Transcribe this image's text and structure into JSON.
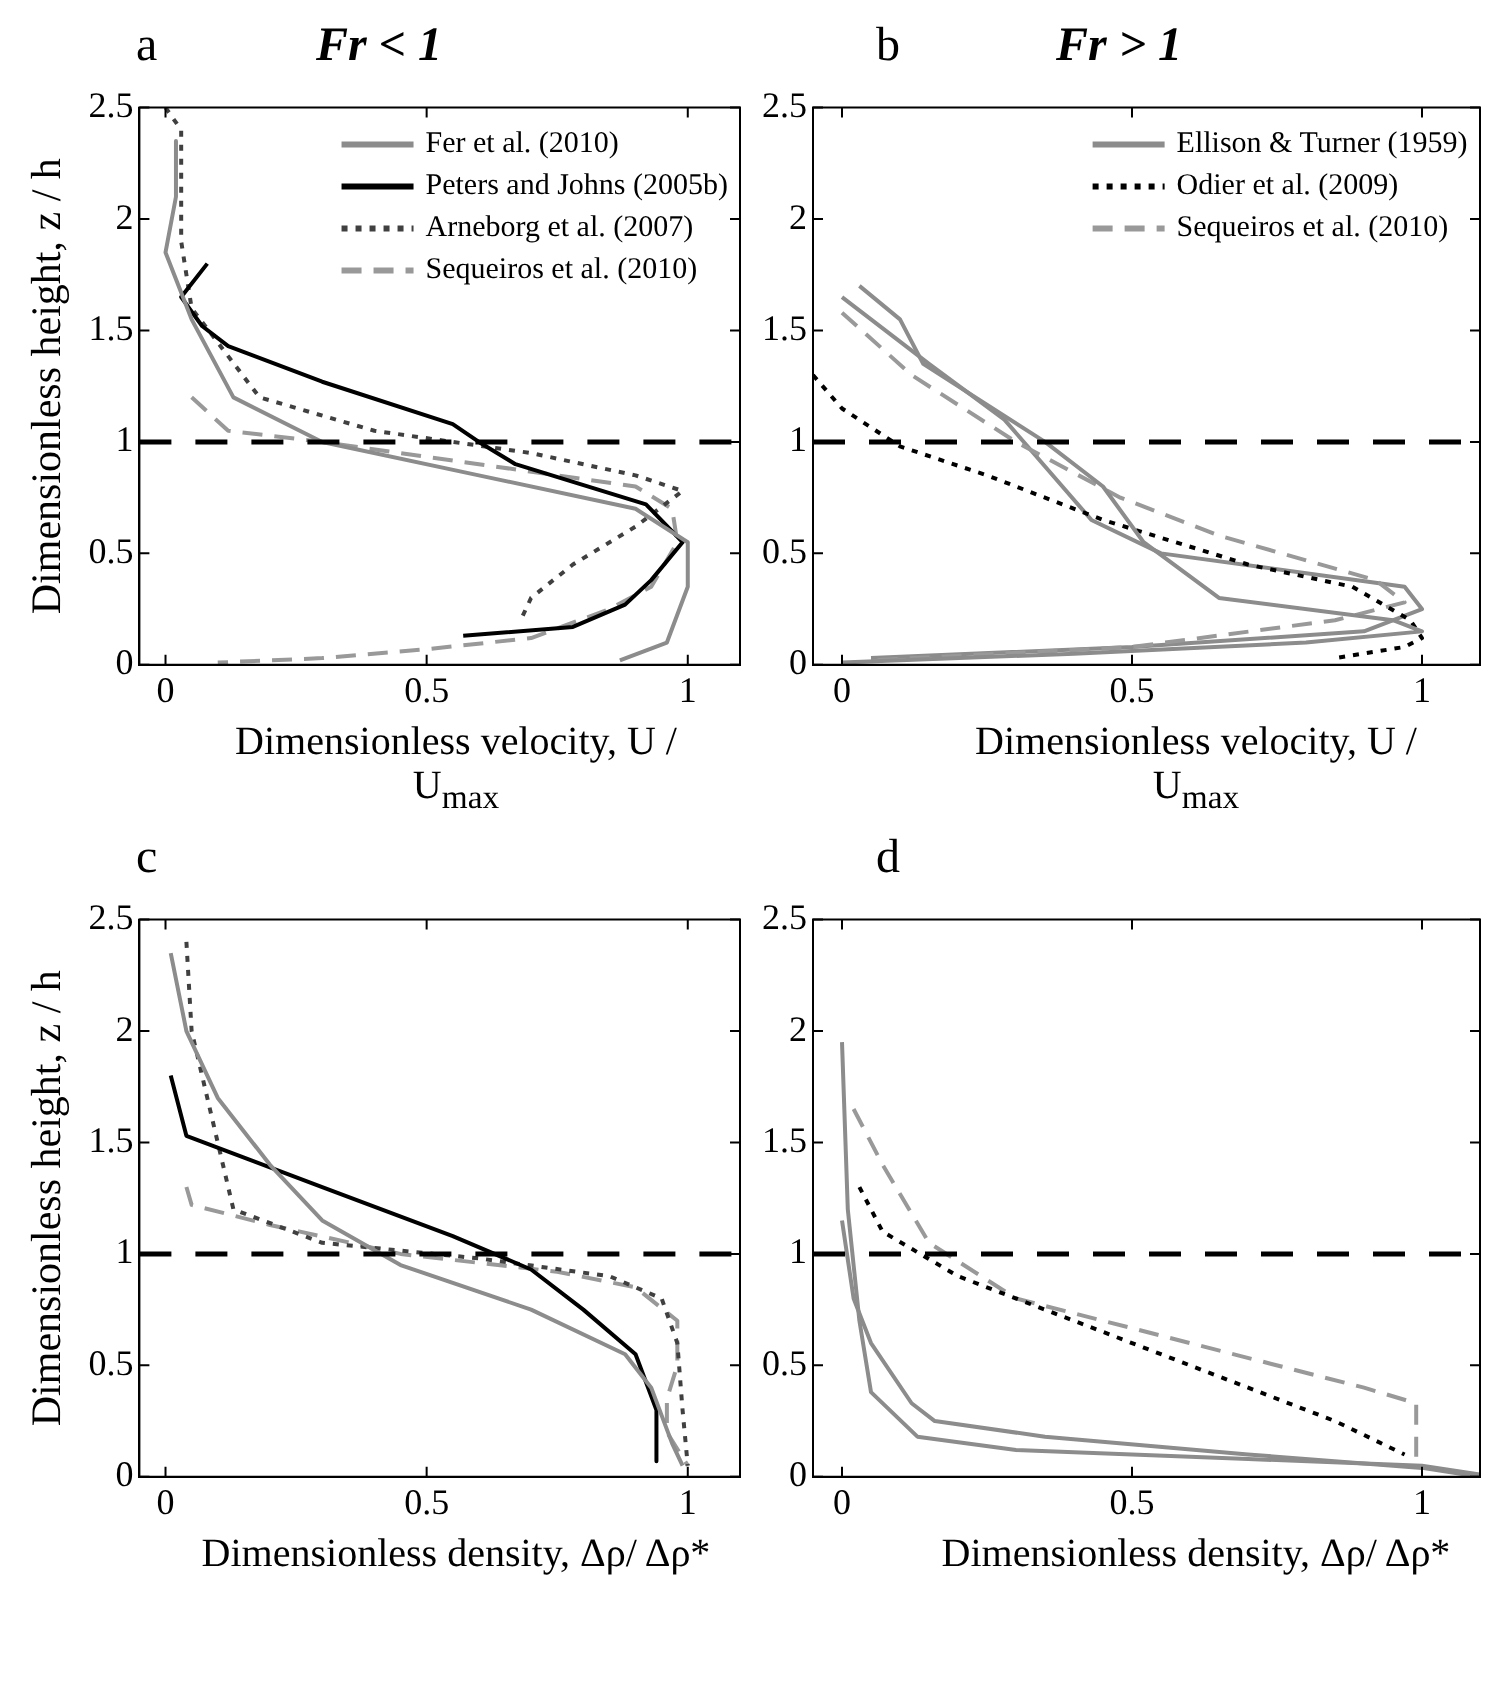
{
  "chart_data": [
    {
      "type": "line",
      "title": "Fr < 1",
      "annotations": [
        "a"
      ],
      "xlabel": "Dimensionless velocity, U / U$_{max}$",
      "ylabel": "Dimensionless height, z / h",
      "xlim": [
        -0.05,
        1.1
      ],
      "xticks": [
        0,
        0.5,
        1
      ],
      "ylim": [
        0,
        2.5
      ],
      "yticks": [
        0,
        0.5,
        1,
        1.5,
        2,
        2.5
      ],
      "grid": false,
      "legend": "top right",
      "marker": "none",
      "ref_lines": [
        {
          "axis": "y",
          "value": 1,
          "color": "#000000",
          "line_style": "dashed"
        }
      ],
      "series": [
        {
          "name": "Fer et al. (2010)",
          "color": "#8c8c8c",
          "line_style": "solid",
          "x": [
            0.02,
            0.02,
            0.0,
            0.05,
            0.13,
            0.3,
            0.6,
            0.9,
            1.0,
            1.0,
            0.96,
            0.87
          ],
          "values": [
            2.35,
            2.1,
            1.85,
            1.55,
            1.2,
            1.0,
            0.85,
            0.7,
            0.55,
            0.35,
            0.1,
            0.02
          ]
        },
        {
          "name": "Peters and Johns (2005b)",
          "color": "#000000",
          "line_style": "solid",
          "x": [
            0.08,
            0.03,
            0.07,
            0.12,
            0.3,
            0.55,
            0.6,
            0.67,
            0.92,
            0.99,
            0.93,
            0.88,
            0.78,
            0.57
          ],
          "values": [
            1.8,
            1.65,
            1.52,
            1.43,
            1.27,
            1.08,
            1.0,
            0.9,
            0.72,
            0.55,
            0.38,
            0.27,
            0.17,
            0.13
          ]
        },
        {
          "name": "Arneborg et al. (2007)",
          "color": "#404040",
          "line_style": "dotted",
          "x": [
            0.0,
            0.03,
            0.03,
            0.05,
            0.18,
            0.4,
            0.7,
            0.9,
            0.99,
            0.9,
            0.78,
            0.7,
            0.68
          ],
          "values": [
            2.5,
            2.4,
            1.9,
            1.6,
            1.2,
            1.05,
            0.95,
            0.85,
            0.78,
            0.62,
            0.45,
            0.3,
            0.2
          ]
        },
        {
          "name": "Sequeiros et al. (2010)",
          "color": "#999999",
          "line_style": "dashed",
          "x": [
            0.05,
            0.12,
            0.3,
            0.6,
            0.9,
            0.97,
            0.98,
            0.93,
            0.85,
            0.7,
            0.5,
            0.3,
            0.1
          ],
          "values": [
            1.2,
            1.05,
            1.0,
            0.9,
            0.8,
            0.7,
            0.55,
            0.35,
            0.25,
            0.12,
            0.07,
            0.03,
            0.01
          ]
        }
      ]
    },
    {
      "type": "line",
      "title": "Fr > 1",
      "annotations": [
        "b"
      ],
      "xlabel": "Dimensionless velocity, U / U$_{max}$",
      "xlim": [
        -0.05,
        1.1
      ],
      "xticks": [
        0,
        0.5,
        1
      ],
      "ylim": [
        0,
        2.5
      ],
      "yticks": [
        0,
        0.5,
        1,
        1.5,
        2,
        2.5
      ],
      "grid": false,
      "legend": "top right",
      "marker": "none",
      "ref_lines": [
        {
          "axis": "y",
          "value": 1,
          "color": "#000000",
          "line_style": "dashed"
        }
      ],
      "series": [
        {
          "name": "Ellison & Turner (1959)",
          "color": "#8c8c8c",
          "line_style": "solid",
          "x": [
            0.03,
            0.1,
            0.14,
            0.35,
            0.45,
            0.52,
            0.65,
            0.95,
            1.0,
            0.8,
            0.4,
            0.0
          ],
          "values": [
            1.7,
            1.55,
            1.35,
            1.0,
            0.8,
            0.55,
            0.3,
            0.2,
            0.15,
            0.1,
            0.05,
            0.01
          ]
        },
        {
          "name": "Odier et al. (2009)",
          "color": "#000000",
          "line_style": "dotted",
          "x": [
            -0.05,
            0.0,
            0.1,
            0.25,
            0.45,
            0.7,
            0.88,
            0.98,
            1.0,
            0.97,
            0.85
          ],
          "values": [
            1.3,
            1.15,
            0.98,
            0.85,
            0.65,
            0.45,
            0.35,
            0.2,
            0.12,
            0.08,
            0.03
          ]
        },
        {
          "name": "Sequeiros et al. (2010)",
          "color": "#999999",
          "line_style": "dashed",
          "x": [
            0.0,
            0.12,
            0.3,
            0.48,
            0.65,
            0.92,
            0.97,
            0.85,
            0.5,
            0.05
          ],
          "values": [
            1.58,
            1.3,
            1.0,
            0.75,
            0.58,
            0.38,
            0.28,
            0.2,
            0.08,
            0.02
          ]
        },
        {
          "color": "#8c8c8c",
          "line_style": "solid",
          "x": [
            0.0,
            0.15,
            0.28,
            0.43,
            0.55,
            0.97,
            1.0,
            0.9,
            0.5,
            0.05
          ],
          "values": [
            1.65,
            1.35,
            1.1,
            0.65,
            0.5,
            0.35,
            0.25,
            0.15,
            0.08,
            0.03
          ]
        }
      ]
    },
    {
      "type": "line",
      "annotations": [
        "c"
      ],
      "xlabel": "Dimensionless density, Δρ/ Δρ*",
      "ylabel": "Dimensionless height, z / h",
      "xlim": [
        -0.05,
        1.1
      ],
      "xticks": [
        0,
        0.5,
        1
      ],
      "ylim": [
        0,
        2.5
      ],
      "yticks": [
        0,
        0.5,
        1,
        1.5,
        2,
        2.5
      ],
      "grid": false,
      "marker": "none",
      "ref_lines": [
        {
          "axis": "y",
          "value": 1,
          "color": "#000000",
          "line_style": "dashed"
        }
      ],
      "series": [
        {
          "color": "#8c8c8c",
          "line_style": "solid",
          "x": [
            0.01,
            0.04,
            0.1,
            0.2,
            0.3,
            0.45,
            0.7,
            0.88,
            0.93,
            0.97,
            0.99
          ],
          "values": [
            2.35,
            2.0,
            1.7,
            1.4,
            1.15,
            0.95,
            0.75,
            0.55,
            0.4,
            0.15,
            0.05
          ]
        },
        {
          "color": "#000000",
          "line_style": "solid",
          "x": [
            0.01,
            0.04,
            0.3,
            0.55,
            0.7,
            0.8,
            0.9,
            0.94,
            0.94
          ],
          "values": [
            1.8,
            1.53,
            1.3,
            1.08,
            0.93,
            0.75,
            0.55,
            0.3,
            0.07
          ]
        },
        {
          "color": "#404040",
          "line_style": "dotted",
          "x": [
            0.04,
            0.05,
            0.09,
            0.11,
            0.13,
            0.3,
            0.6,
            0.85,
            0.95,
            0.98,
            0.99,
            1.0
          ],
          "values": [
            2.4,
            2.0,
            1.6,
            1.4,
            1.2,
            1.05,
            0.98,
            0.9,
            0.8,
            0.6,
            0.3,
            0.05
          ]
        },
        {
          "color": "#999999",
          "line_style": "dashed",
          "x": [
            0.04,
            0.05,
            0.2,
            0.45,
            0.75,
            0.9,
            0.98,
            0.98,
            0.96,
            0.96,
            1.0
          ],
          "values": [
            1.3,
            1.22,
            1.13,
            1.0,
            0.92,
            0.85,
            0.7,
            0.5,
            0.35,
            0.2,
            0.05
          ]
        }
      ]
    },
    {
      "type": "line",
      "annotations": [
        "d"
      ],
      "xlabel": "Dimensionless density, Δρ/ Δρ*",
      "xlim": [
        -0.05,
        1.1
      ],
      "xticks": [
        0,
        0.5,
        1
      ],
      "ylim": [
        0,
        2.5
      ],
      "yticks": [
        0,
        0.5,
        1,
        1.5,
        2,
        2.5
      ],
      "grid": false,
      "marker": "none",
      "ref_lines": [
        {
          "axis": "y",
          "value": 1,
          "color": "#000000",
          "line_style": "dashed"
        }
      ],
      "series": [
        {
          "color": "#8c8c8c",
          "line_style": "solid",
          "x": [
            0.0,
            0.01,
            0.03,
            0.05,
            0.13,
            0.3,
            0.7,
            1.0,
            1.1
          ],
          "values": [
            1.95,
            1.2,
            0.7,
            0.38,
            0.18,
            0.12,
            0.08,
            0.05,
            0.01
          ]
        },
        {
          "color": "#8c8c8c",
          "line_style": "solid",
          "x": [
            0.0,
            0.02,
            0.05,
            0.12,
            0.16,
            0.35,
            0.7,
            1.0,
            1.1
          ],
          "values": [
            1.15,
            0.8,
            0.6,
            0.33,
            0.25,
            0.18,
            0.1,
            0.04,
            0.0
          ]
        },
        {
          "color": "#000000",
          "line_style": "dotted",
          "x": [
            0.03,
            0.07,
            0.2,
            0.4,
            0.65,
            0.85,
            0.97
          ],
          "values": [
            1.3,
            1.1,
            0.9,
            0.7,
            0.45,
            0.25,
            0.1
          ]
        },
        {
          "color": "#999999",
          "line_style": "dashed",
          "x": [
            0.02,
            0.07,
            0.15,
            0.3,
            0.6,
            0.9,
            0.99,
            0.99
          ],
          "values": [
            1.65,
            1.4,
            1.05,
            0.8,
            0.6,
            0.4,
            0.33,
            0.05
          ]
        }
      ]
    }
  ]
}
